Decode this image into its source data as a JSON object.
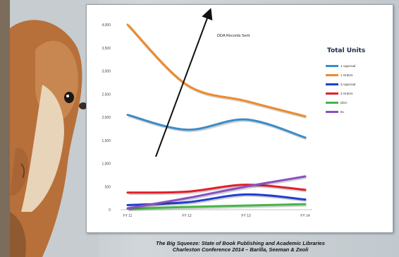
{
  "chart_data": {
    "type": "line",
    "categories": [
      "FY 11",
      "FY 12",
      "FY 13",
      "FY 14"
    ],
    "ylim": [
      0,
      4000
    ],
    "yticks": [
      "0",
      "500",
      "1,000",
      "1,500",
      "2,000",
      "2,500",
      "3,000",
      "3,500",
      "4,000"
    ],
    "yticks_values": [
      0,
      500,
      1000,
      1500,
      2000,
      2500,
      3000,
      3500,
      4000
    ],
    "grid": false,
    "legend_title": "Total Units",
    "legend_position": "right",
    "annotation": "DDA Records Sent",
    "series": [
      {
        "name": "1 Approval",
        "color": "#3a8cc8",
        "values": [
          2050,
          1730,
          1950,
          1560
        ]
      },
      {
        "name": "1 Orders",
        "color": "#ee8a2a",
        "values": [
          4000,
          2700,
          2350,
          2020
        ]
      },
      {
        "name": "3 Approval",
        "color": "#1f3fd0",
        "values": [
          100,
          160,
          330,
          220
        ]
      },
      {
        "name": "3 Orders",
        "color": "#e11f2a",
        "values": [
          370,
          390,
          540,
          430
        ]
      },
      {
        "name": "DDA",
        "color": "#46b548",
        "values": [
          20,
          60,
          90,
          120
        ]
      },
      {
        "name": "EL",
        "color": "#8a4fc2",
        "values": [
          30,
          250,
          500,
          720
        ]
      }
    ]
  },
  "caption": {
    "line1": "The Big Squeeze: State of Book Publishing and Academic Libraries",
    "line2": "Charleston Conference 2014 – Barilla, Seeman & Zeoli"
  }
}
